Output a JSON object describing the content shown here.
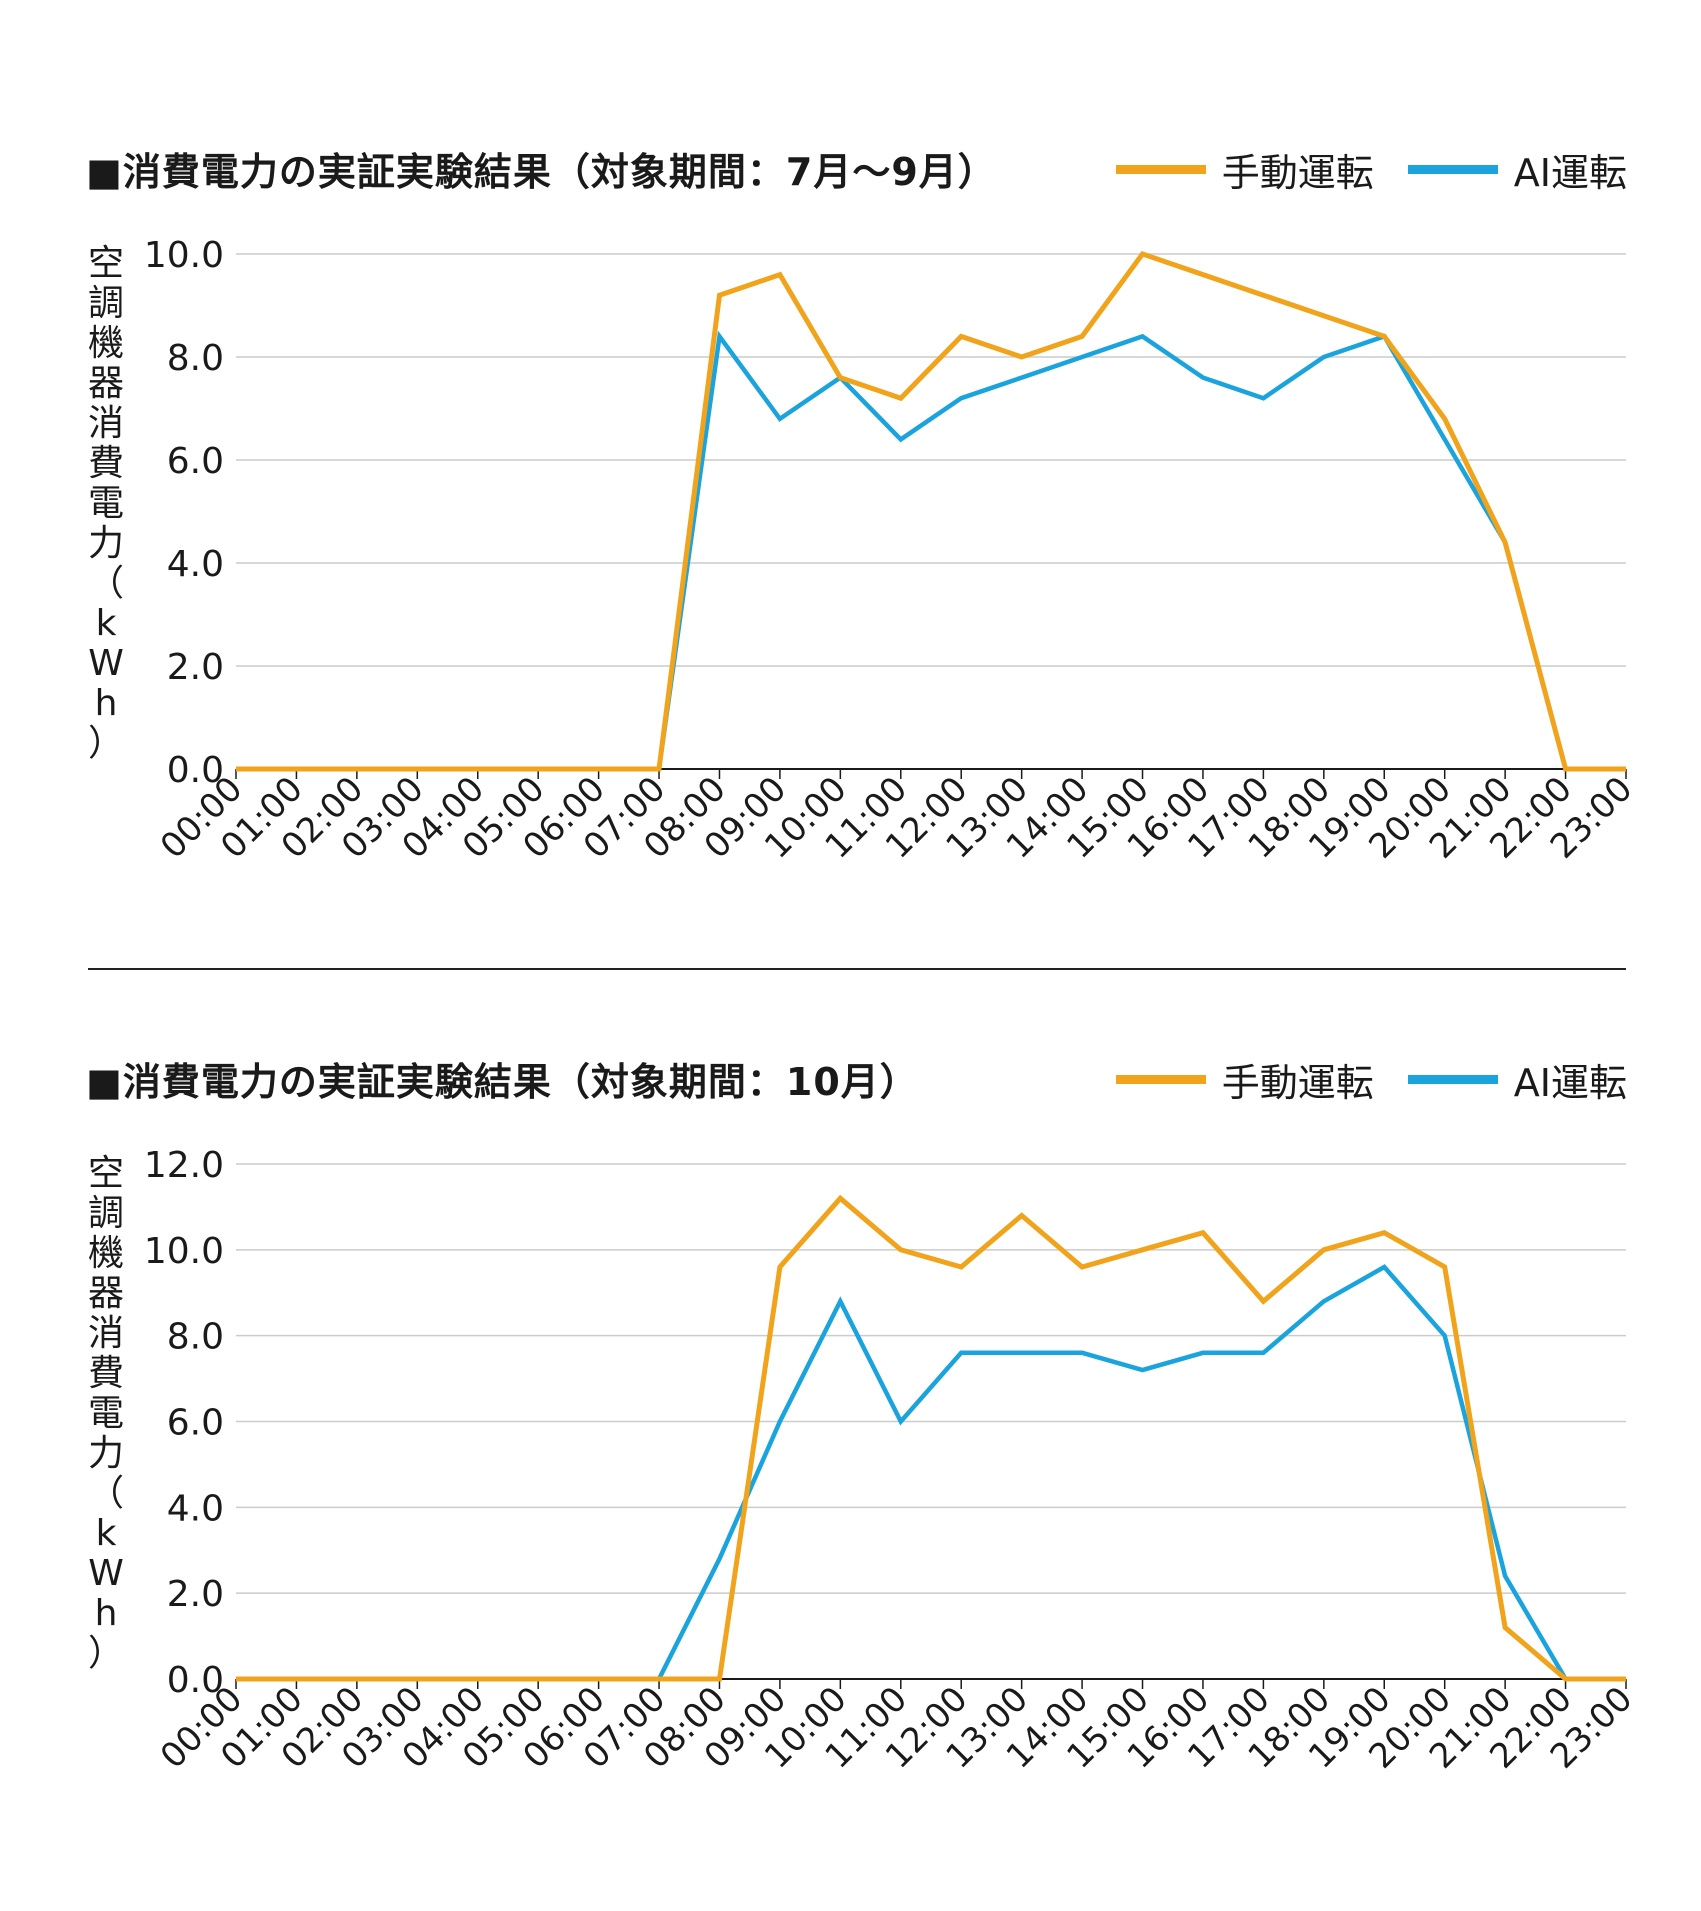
{
  "legend": {
    "manual": "手動運転",
    "ai": "AI運転"
  },
  "colors": {
    "manual": "#f0a31b",
    "ai": "#1aa3dd",
    "grid": "#cccccc",
    "axis": "#1a1a1a"
  },
  "ylabel_chars": [
    "空",
    "調",
    "機",
    "器",
    "消",
    "費",
    "電",
    "力",
    "（",
    "k",
    "W",
    "h",
    "）"
  ],
  "chart_data": [
    {
      "type": "line",
      "title": "■消費電力の実証実験結果（対象期間：7月～9月）",
      "ylabel": "空調機器消費電力（kWh）",
      "xlabel": "",
      "x": [
        "00:00",
        "01:00",
        "02:00",
        "03:00",
        "04:00",
        "05:00",
        "06:00",
        "07:00",
        "08:00",
        "09:00",
        "10:00",
        "11:00",
        "12:00",
        "13:00",
        "14:00",
        "15:00",
        "16:00",
        "17:00",
        "18:00",
        "19:00",
        "20:00",
        "21:00",
        "22:00",
        "23:00"
      ],
      "ylim": [
        0,
        10
      ],
      "yticks": [
        "0.0",
        "2.0",
        "4.0",
        "6.0",
        "8.0",
        "10.0"
      ],
      "series": [
        {
          "name": "手動運転",
          "values": [
            0,
            0,
            0,
            0,
            0,
            0,
            0,
            0,
            9.2,
            9.6,
            7.6,
            7.2,
            8.4,
            8.0,
            8.4,
            10.0,
            9.6,
            9.2,
            8.8,
            8.4,
            6.8,
            4.4,
            0,
            0
          ]
        },
        {
          "name": "AI運転",
          "values": [
            0,
            0,
            0,
            0,
            0,
            0,
            0,
            0,
            8.4,
            6.8,
            7.6,
            6.4,
            7.2,
            7.6,
            8.0,
            8.4,
            7.6,
            7.2,
            8.0,
            8.4,
            6.4,
            4.4,
            0,
            0
          ]
        }
      ]
    },
    {
      "type": "line",
      "title": "■消費電力の実証実験結果（対象期間：10月）",
      "ylabel": "空調機器消費電力（kWh）",
      "xlabel": "",
      "x": [
        "00:00",
        "01:00",
        "02:00",
        "03:00",
        "04:00",
        "05:00",
        "06:00",
        "07:00",
        "08:00",
        "09:00",
        "10:00",
        "11:00",
        "12:00",
        "13:00",
        "14:00",
        "15:00",
        "16:00",
        "17:00",
        "18:00",
        "19:00",
        "20:00",
        "21:00",
        "22:00",
        "23:00"
      ],
      "ylim": [
        0,
        12
      ],
      "yticks": [
        "0.0",
        "2.0",
        "4.0",
        "6.0",
        "8.0",
        "10.0",
        "12.0"
      ],
      "series": [
        {
          "name": "手動運転",
          "values": [
            0,
            0,
            0,
            0,
            0,
            0,
            0,
            0,
            0,
            9.6,
            11.2,
            10.0,
            9.6,
            10.8,
            9.6,
            10.0,
            10.4,
            8.8,
            10.0,
            10.4,
            9.6,
            1.2,
            0,
            0
          ]
        },
        {
          "name": "AI運転",
          "values": [
            0,
            0,
            0,
            0,
            0,
            0,
            0,
            0,
            2.8,
            6.0,
            8.8,
            6.0,
            7.6,
            7.6,
            7.6,
            7.2,
            7.6,
            7.6,
            8.8,
            9.6,
            8.0,
            2.4,
            0,
            0
          ]
        }
      ]
    }
  ]
}
